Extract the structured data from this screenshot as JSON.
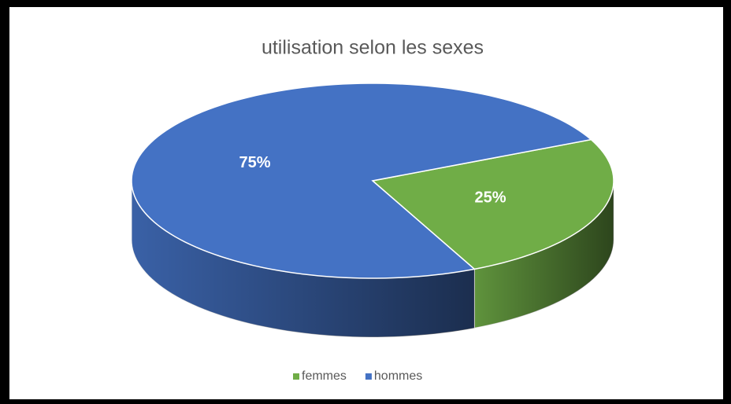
{
  "chart_data": {
    "type": "pie",
    "title": "utilisation selon les sexes",
    "categories": [
      "femmes",
      "hommes"
    ],
    "values": [
      25,
      75
    ],
    "value_labels": [
      "25%",
      "75%"
    ],
    "colors": [
      "#70ad47",
      "#4472c4"
    ],
    "legend": "bottom"
  }
}
